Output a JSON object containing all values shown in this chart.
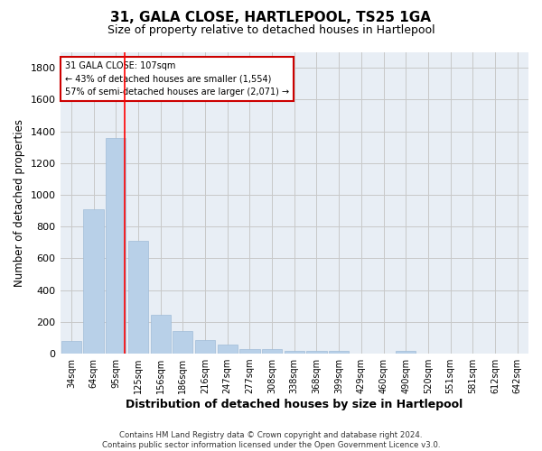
{
  "title": "31, GALA CLOSE, HARTLEPOOL, TS25 1GA",
  "subtitle": "Size of property relative to detached houses in Hartlepool",
  "xlabel": "Distribution of detached houses by size in Hartlepool",
  "ylabel": "Number of detached properties",
  "footnote": "Contains HM Land Registry data © Crown copyright and database right 2024.\nContains public sector information licensed under the Open Government Licence v3.0.",
  "categories": [
    "34sqm",
    "64sqm",
    "95sqm",
    "125sqm",
    "156sqm",
    "186sqm",
    "216sqm",
    "247sqm",
    "277sqm",
    "308sqm",
    "338sqm",
    "368sqm",
    "399sqm",
    "429sqm",
    "460sqm",
    "490sqm",
    "520sqm",
    "551sqm",
    "581sqm",
    "612sqm",
    "642sqm"
  ],
  "values": [
    82,
    910,
    1360,
    710,
    245,
    140,
    85,
    55,
    30,
    30,
    20,
    15,
    15,
    0,
    0,
    20,
    0,
    0,
    0,
    0,
    0
  ],
  "bar_color": "#b8d0e8",
  "bar_edgecolor": "#a0bcd8",
  "redline_label": "31 GALA CLOSE: 107sqm",
  "annotation_line1": "← 43% of detached houses are smaller (1,554)",
  "annotation_line2": "57% of semi-detached houses are larger (2,071) →",
  "annotation_box_edgecolor": "#cc0000",
  "ylim": [
    0,
    1900
  ],
  "yticks": [
    0,
    200,
    400,
    600,
    800,
    1000,
    1200,
    1400,
    1600,
    1800
  ],
  "background_color": "#ffffff",
  "plot_bg_color": "#e8eef5",
  "grid_color": "#c8c8c8"
}
